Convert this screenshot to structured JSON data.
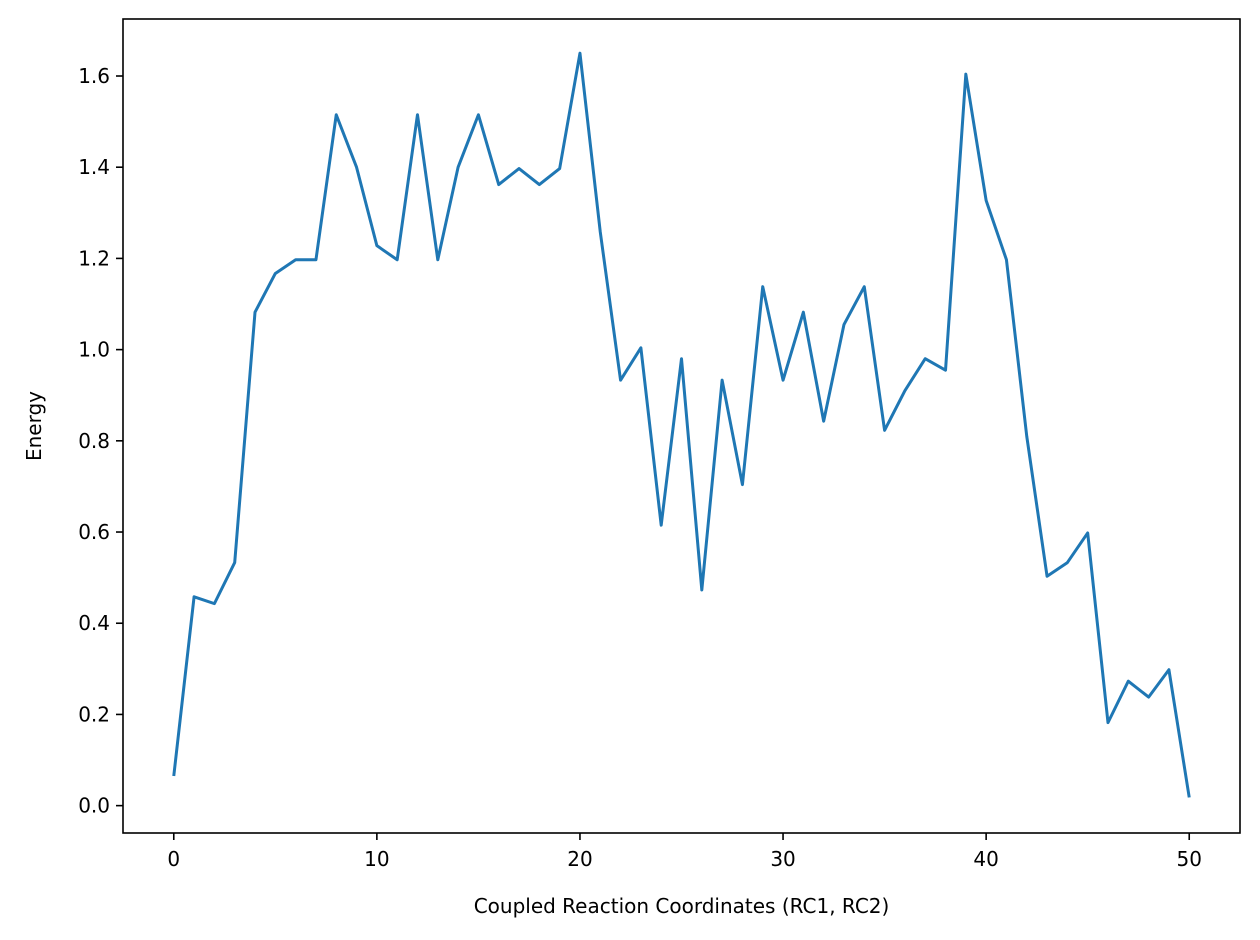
{
  "chart_data": {
    "type": "line",
    "title": "",
    "xlabel": "Coupled Reaction Coordinates (RC1, RC2)",
    "ylabel": "Energy",
    "xlim": [
      -2.5,
      52.5
    ],
    "ylim": [
      -0.06,
      1.725
    ],
    "xticks": [
      0,
      10,
      20,
      30,
      40,
      50
    ],
    "xtick_labels": [
      "0",
      "10",
      "20",
      "30",
      "40",
      "50"
    ],
    "yticks": [
      0.0,
      0.2,
      0.4,
      0.6,
      0.8,
      1.0,
      1.2,
      1.4,
      1.6
    ],
    "ytick_labels": [
      "0.0",
      "0.2",
      "0.4",
      "0.6",
      "0.8",
      "1.0",
      "1.2",
      "1.4",
      "1.6"
    ],
    "grid": false,
    "legend": false,
    "series": [
      {
        "color": "#1f77b4",
        "x": [
          0,
          1,
          2,
          3,
          4,
          5,
          6,
          7,
          8,
          9,
          10,
          11,
          12,
          13,
          14,
          15,
          16,
          17,
          18,
          19,
          20,
          21,
          22,
          23,
          24,
          25,
          26,
          27,
          28,
          29,
          30,
          31,
          32,
          33,
          34,
          35,
          36,
          37,
          38,
          39,
          40,
          41,
          42,
          43,
          44,
          45,
          46,
          47,
          48,
          49,
          50
        ],
        "y": [
          0.065,
          0.458,
          0.443,
          0.533,
          1.082,
          1.167,
          1.197,
          1.197,
          1.515,
          1.4,
          1.228,
          1.197,
          1.515,
          1.197,
          1.4,
          1.515,
          1.362,
          1.397,
          1.362,
          1.397,
          1.65,
          1.258,
          0.933,
          1.004,
          0.615,
          0.98,
          0.473,
          0.933,
          0.704,
          1.138,
          0.933,
          1.082,
          0.843,
          1.055,
          1.138,
          0.823,
          0.91,
          0.98,
          0.955,
          1.604,
          1.327,
          1.197,
          0.81,
          0.503,
          0.533,
          0.598,
          0.182,
          0.273,
          0.238,
          0.298,
          0.018
        ]
      }
    ]
  }
}
